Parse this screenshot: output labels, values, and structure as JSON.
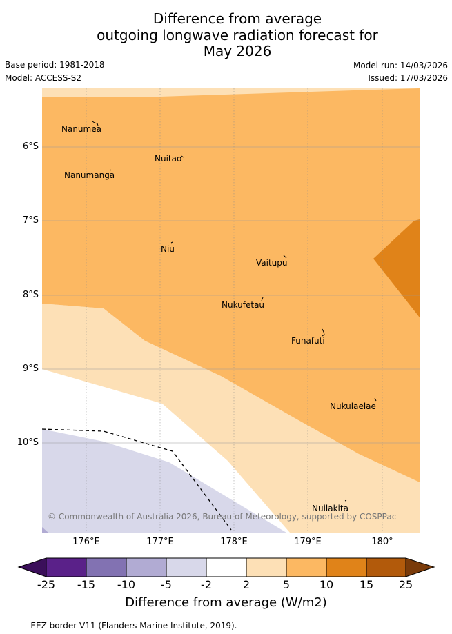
{
  "title": {
    "line1": "Difference from average",
    "line2": "outgoing longwave radiation forecast for",
    "line3": "May 2026"
  },
  "meta": {
    "base_period": "Base period: 1981-2018",
    "model": "Model: ACCESS-S2",
    "model_run": "Model run: 14/03/2026",
    "issued": "Issued: 17/03/2026"
  },
  "axes": {
    "lat_labels": [
      "6°S",
      "7°S",
      "8°S",
      "9°S",
      "10°S"
    ],
    "lon_labels": [
      "176°E",
      "177°E",
      "178°E",
      "179°E",
      "180°"
    ]
  },
  "islands": {
    "nanumea": "Nanumea",
    "nuitao": "Nuitao",
    "nanumanga": "Nanumanga",
    "niu": "Niu",
    "vaitupu": "Vaitupu",
    "nukufetau": "Nukufetau",
    "funafuti": "Funafuti",
    "nukulaelae": "Nukulaelae",
    "nuilakita": "Nuilakita"
  },
  "copyright": "© Commonwealth of Australia 2026, Bureau of Meteorology, supported by COSPPac",
  "colorbar": {
    "ticks": [
      "-25",
      "-15",
      "-10",
      "-5",
      "-2",
      "2",
      "5",
      "10",
      "15",
      "25"
    ],
    "colors": [
      "#3b0f5a",
      "#5a2189",
      "#8272b2",
      "#b1abd3",
      "#d8d8ea",
      "#ffffff",
      "#fde0b6",
      "#fcb862",
      "#e08319",
      "#b25a0b",
      "#7a3b0a"
    ],
    "title": "Difference from average (W/m2)"
  },
  "footer": "-- -- -- EEZ border V11 (Flanders Marine Institute, 2019).",
  "map_colors": {
    "light_orange": "#fde0b6",
    "orange": "#fcb862",
    "dark_orange": "#e08319",
    "light_purple": "#d8d8ea",
    "deep_purple": "#b1abd3"
  }
}
